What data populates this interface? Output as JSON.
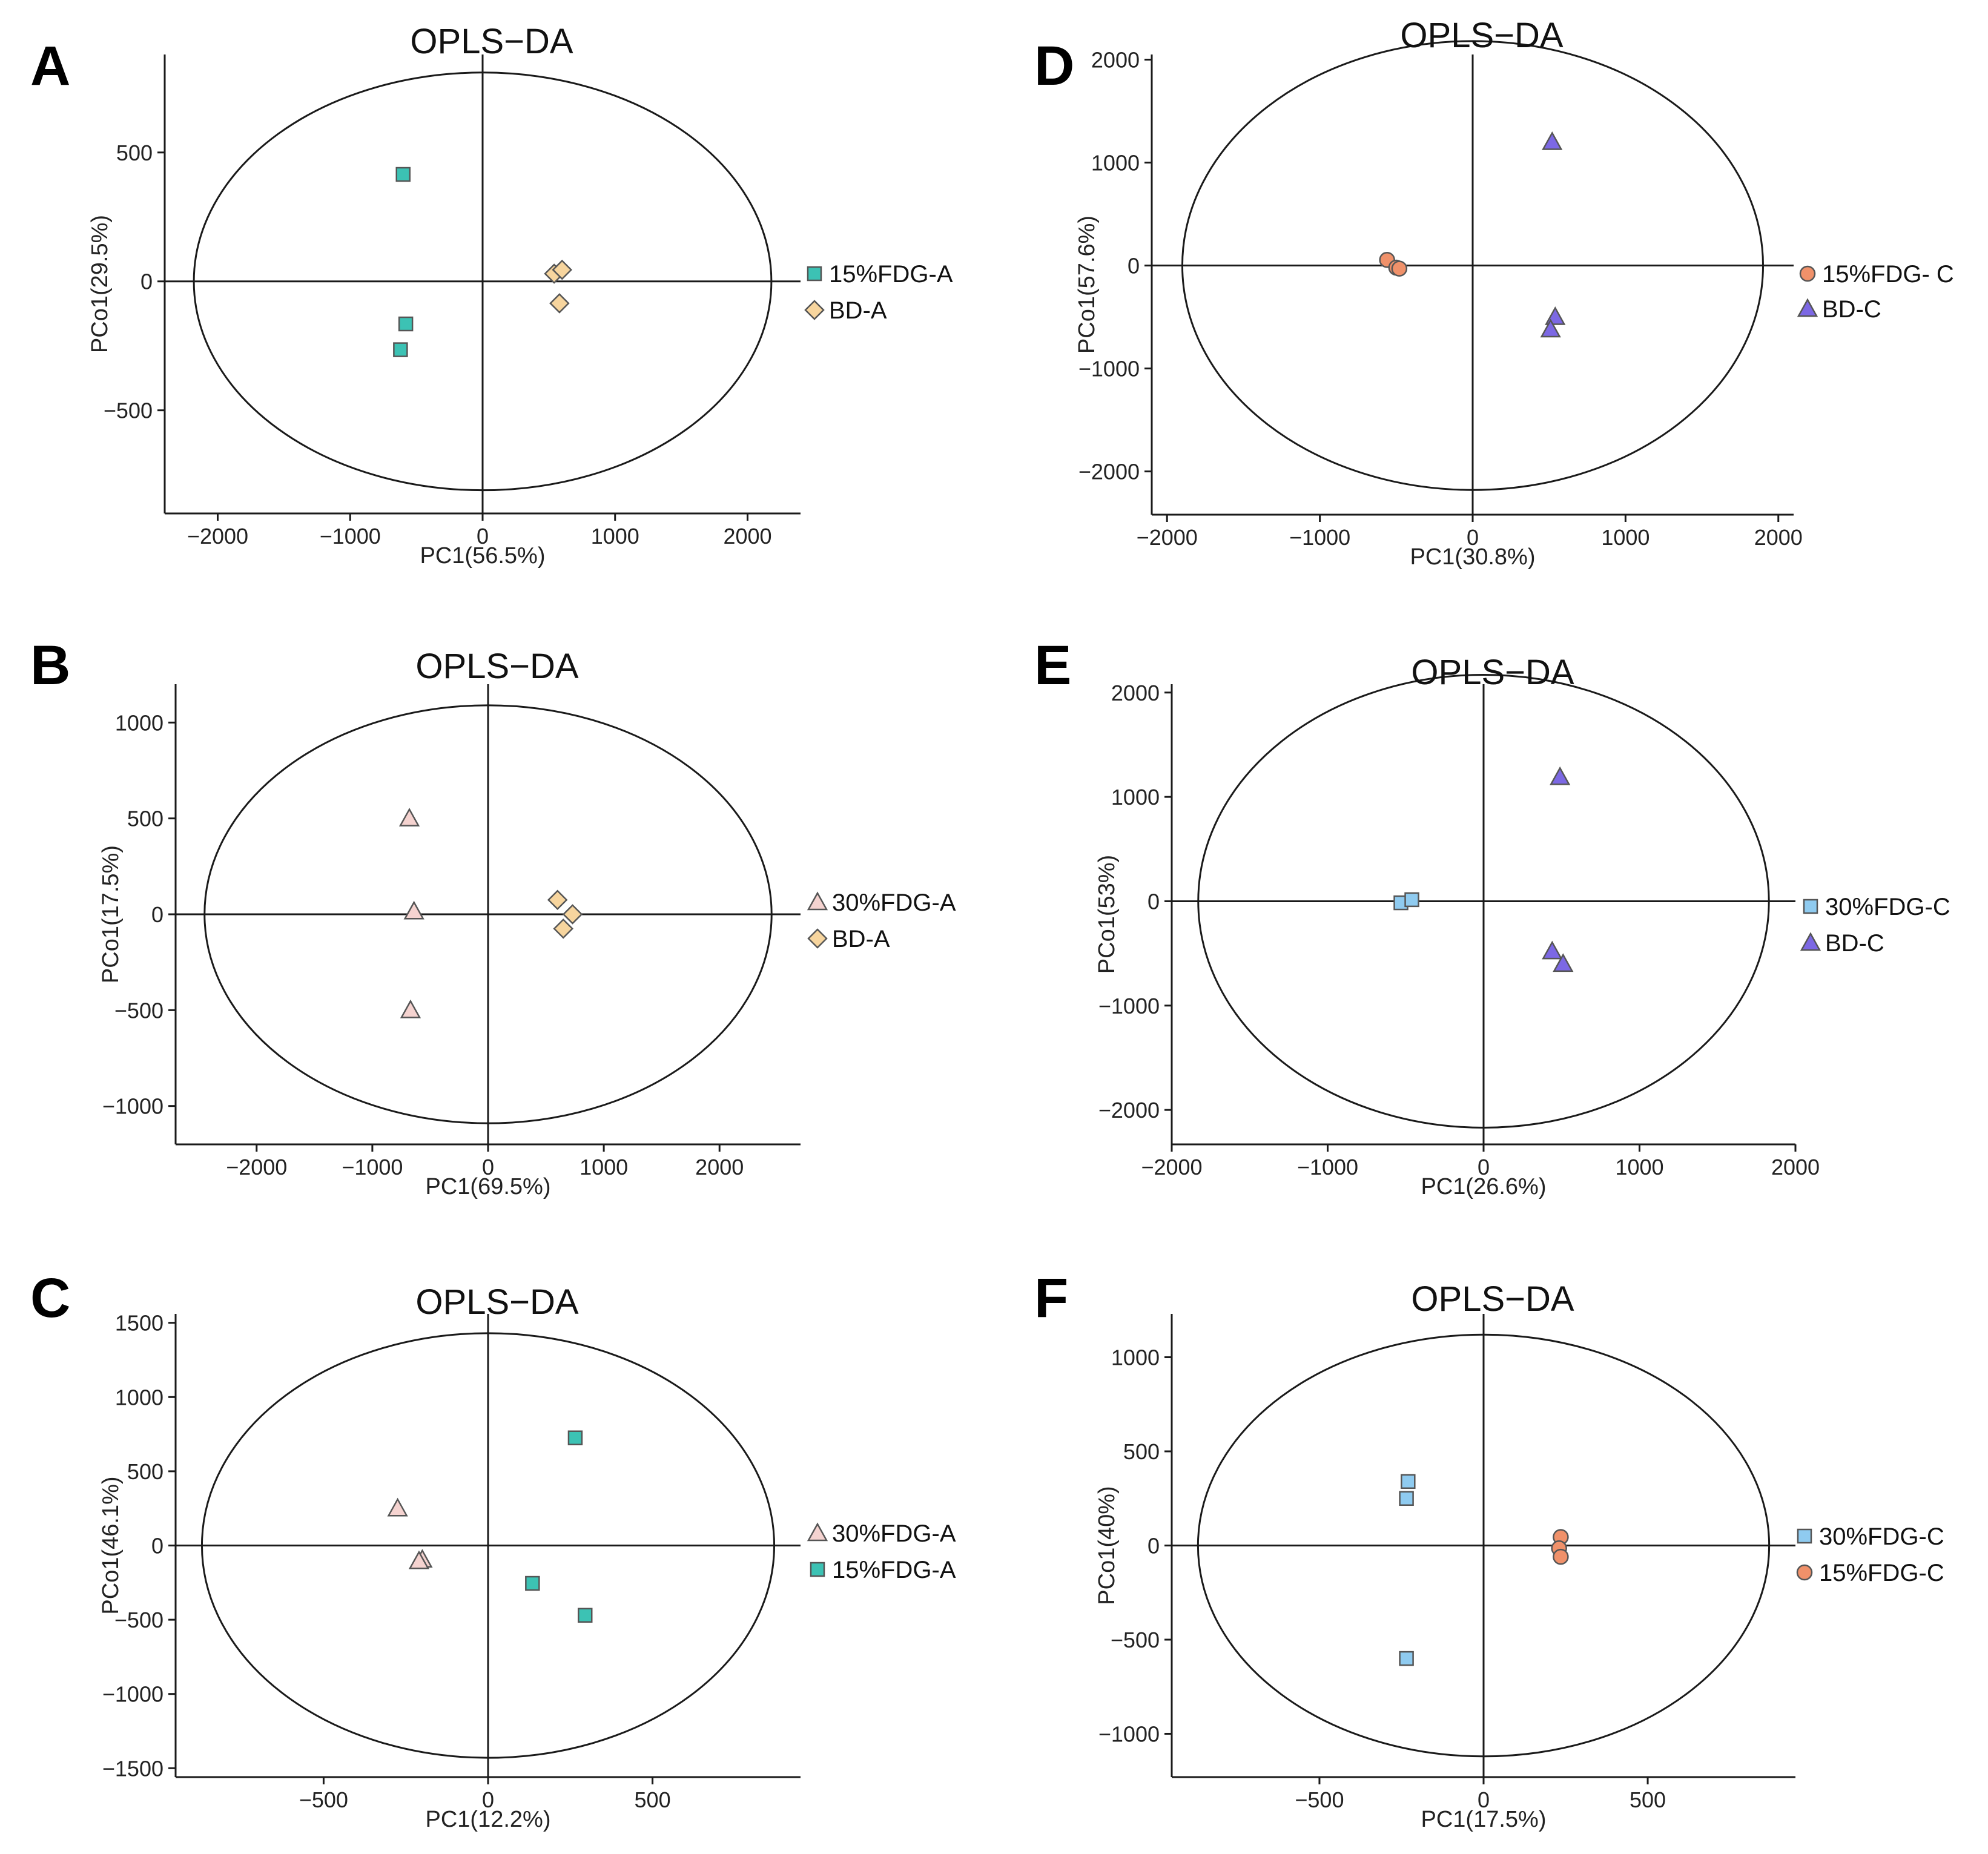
{
  "colors": {
    "teal": "#3cc2b4",
    "tan": "#f7d59e",
    "pink": "#f5d3d0",
    "orange": "#f0916a",
    "purple": "#7c68e4",
    "lightblue": "#8fcbf0",
    "axis": "#1a1a1a",
    "marker_edge": "#555555"
  },
  "chart_data": [
    {
      "type": "scatter",
      "panel_label": "A",
      "title": "OPLS−DA",
      "xlabel": "PC1(56.5%)",
      "ylabel": "PCo1(29.5%)",
      "xlim": [
        -2400,
        2400
      ],
      "ylim": [
        -900,
        880
      ],
      "xticks": [
        -2000,
        -1000,
        0,
        1000,
        2000
      ],
      "xtick_labels": [
        "−2000",
        "−1000",
        "0",
        "1000",
        "2000"
      ],
      "yticks": [
        -500,
        0,
        500
      ],
      "ytick_labels": [
        "−500",
        "0",
        "500"
      ],
      "ellipse": {
        "rx": 2180,
        "ry": 810
      },
      "series": [
        {
          "name": "15%FDG-A",
          "marker": "square",
          "color": "teal",
          "points": [
            [
              -600,
              415
            ],
            [
              -580,
              -165
            ],
            [
              -620,
              -265
            ]
          ]
        },
        {
          "name": "BD-A",
          "marker": "diamond",
          "color": "tan",
          "points": [
            [
              540,
              30
            ],
            [
              600,
              45
            ],
            [
              580,
              -85
            ]
          ]
        }
      ],
      "legend": [
        "15%FDG-A",
        "BD-A"
      ]
    },
    {
      "type": "scatter",
      "panel_label": "D",
      "title": "OPLS−DA",
      "xlabel": "PC1(30.8%)",
      "ylabel": "PCo1(57.6%)",
      "xlim": [
        -2100,
        2100
      ],
      "ylim": [
        -2420,
        2050
      ],
      "xticks": [
        -2000,
        -1000,
        0,
        1000,
        2000
      ],
      "xtick_labels": [
        "−2000",
        "−1000",
        "0",
        "1000",
        "2000"
      ],
      "yticks": [
        -2000,
        -1000,
        0,
        1000,
        2000
      ],
      "ytick_labels": [
        "−2000",
        "−1000",
        "0",
        "1000",
        "2000"
      ],
      "ellipse": {
        "rx": 1900,
        "ry": 2180
      },
      "series": [
        {
          "name": "15%FDG- C",
          "marker": "circle",
          "color": "orange",
          "points": [
            [
              -560,
              55
            ],
            [
              -500,
              -20
            ],
            [
              -480,
              -30
            ]
          ]
        },
        {
          "name": "BD-C",
          "marker": "triangle",
          "color": "purple",
          "points": [
            [
              520,
              1200
            ],
            [
              540,
              -500
            ],
            [
              510,
              -620
            ]
          ]
        }
      ],
      "legend": [
        "15%FDG- C",
        "BD-C"
      ]
    },
    {
      "type": "scatter",
      "panel_label": "B",
      "title": "OPLS−DA",
      "xlabel": "PC1(69.5%)",
      "ylabel": "PCo1(17.5%)",
      "xlim": [
        -2700,
        2700
      ],
      "ylim": [
        -1200,
        1200
      ],
      "xticks": [
        -2000,
        -1000,
        0,
        1000,
        2000
      ],
      "xtick_labels": [
        "−2000",
        "−1000",
        "0",
        "1000",
        "2000"
      ],
      "yticks": [
        -1000,
        -500,
        0,
        500,
        1000
      ],
      "ytick_labels": [
        "−1000",
        "−500",
        "0",
        "500",
        "1000"
      ],
      "ellipse": {
        "rx": 2450,
        "ry": 1090
      },
      "series": [
        {
          "name": "30%FDG-A",
          "marker": "triangle",
          "color": "pink",
          "points": [
            [
              -680,
              500
            ],
            [
              -640,
              15
            ],
            [
              -670,
              -500
            ]
          ]
        },
        {
          "name": "BD-A",
          "marker": "diamond",
          "color": "tan",
          "points": [
            [
              600,
              75
            ],
            [
              730,
              0
            ],
            [
              650,
              -75
            ]
          ]
        }
      ],
      "legend": [
        "30%FDG-A",
        "BD-A"
      ]
    },
    {
      "type": "scatter",
      "panel_label": "E",
      "title": "OPLS−DA",
      "xlabel": "PC1(26.6%)",
      "ylabel": "PCo1(53%)",
      "xlim": [
        -2000,
        2000
      ],
      "ylim": [
        -2330,
        2080
      ],
      "xticks": [
        -2000,
        -1000,
        0,
        1000,
        2000
      ],
      "xtick_labels": [
        "−2000",
        "−1000",
        "0",
        "1000",
        "2000"
      ],
      "yticks": [
        -2000,
        -1000,
        0,
        1000,
        2000
      ],
      "ytick_labels": [
        "−2000",
        "−1000",
        "0",
        "1000",
        "2000"
      ],
      "ellipse": {
        "rx": 1830,
        "ry": 2170
      },
      "series": [
        {
          "name": "30%FDG-C",
          "marker": "square",
          "color": "lightblue",
          "points": [
            [
              -530,
              -15
            ],
            [
              -460,
              15
            ]
          ]
        },
        {
          "name": "BD-C",
          "marker": "triangle",
          "color": "purple",
          "points": [
            [
              490,
              1190
            ],
            [
              440,
              -480
            ],
            [
              510,
              -600
            ]
          ]
        }
      ],
      "legend": [
        "30%FDG-C",
        "BD-C"
      ]
    },
    {
      "type": "scatter",
      "panel_label": "C",
      "title": "OPLS−DA",
      "xlabel": "PC1(12.2%)",
      "ylabel": "PCo1(46.1%)",
      "xlim": [
        -950,
        950
      ],
      "ylim": [
        -1560,
        1560
      ],
      "xticks": [
        -500,
        0,
        500
      ],
      "xtick_labels": [
        "−500",
        "0",
        "500"
      ],
      "yticks": [
        -1500,
        -1000,
        -500,
        0,
        500,
        1000,
        1500
      ],
      "ytick_labels": [
        "−1500",
        "−1000",
        "−500",
        "0",
        "500",
        "1000",
        "1500"
      ],
      "ellipse": {
        "rx": 870,
        "ry": 1430
      },
      "series": [
        {
          "name": "30%FDG-A",
          "marker": "triangle",
          "color": "pink",
          "points": [
            [
              -275,
              250
            ],
            [
              -200,
              -95
            ],
            [
              -210,
              -105
            ]
          ]
        },
        {
          "name": "15%FDG-A",
          "marker": "square",
          "color": "teal",
          "points": [
            [
              265,
              725
            ],
            [
              135,
              -255
            ],
            [
              295,
              -470
            ]
          ]
        }
      ],
      "legend": [
        "30%FDG-A",
        "15%FDG-A"
      ]
    },
    {
      "type": "scatter",
      "panel_label": "F",
      "title": "OPLS−DA",
      "xlabel": "PC1(17.5%)",
      "ylabel": "PCo1(40%)",
      "xlim": [
        -950,
        950
      ],
      "ylim": [
        -1230,
        1230
      ],
      "xticks": [
        -500,
        0,
        500
      ],
      "xtick_labels": [
        "−500",
        "0",
        "500"
      ],
      "yticks": [
        -1000,
        -500,
        0,
        500,
        1000
      ],
      "ytick_labels": [
        "−1000",
        "−500",
        "0",
        "500",
        "1000"
      ],
      "ellipse": {
        "rx": 870,
        "ry": 1120
      },
      "series": [
        {
          "name": "30%FDG-C",
          "marker": "square",
          "color": "lightblue",
          "points": [
            [
              -230,
              340
            ],
            [
              -235,
              250
            ],
            [
              -235,
              -600
            ]
          ]
        },
        {
          "name": "15%FDG-C",
          "marker": "circle",
          "color": "orange",
          "points": [
            [
              235,
              45
            ],
            [
              230,
              -15
            ],
            [
              235,
              -60
            ]
          ]
        }
      ],
      "legend": [
        "30%FDG-C",
        "15%FDG-C"
      ]
    }
  ]
}
